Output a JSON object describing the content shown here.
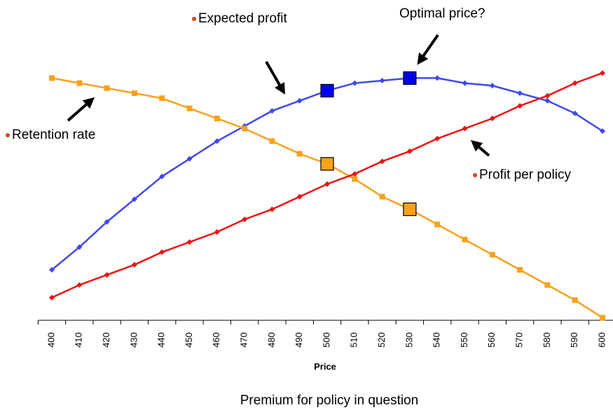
{
  "chart_data": {
    "type": "line",
    "annotations": [
      "Optimal price?"
    ],
    "x_label": "Price",
    "caption": "Premium for policy in question",
    "categories": [
      "400",
      "410",
      "420",
      "430",
      "440",
      "450",
      "460",
      "470",
      "480",
      "490",
      "500",
      "510",
      "520",
      "530",
      "540",
      "550",
      "560",
      "570",
      "580",
      "590",
      "600"
    ],
    "highlighted": [
      "500",
      "530"
    ],
    "ylim": [
      0,
      100
    ],
    "series": [
      {
        "name": "Expected profit",
        "color": "#4048f0",
        "marker": "diamond",
        "highlight_color": "#0000ee",
        "values": [
          20,
          29,
          39,
          48,
          57,
          64,
          71,
          77,
          83,
          87,
          91,
          94,
          95,
          96,
          96,
          94,
          93,
          90,
          87,
          82,
          75
        ]
      },
      {
        "name": "Retention rate",
        "color": "#f7a21b",
        "marker": "square",
        "highlight_color": "#f7a21b",
        "values": [
          96,
          94,
          92,
          90,
          88,
          84,
          80,
          76,
          71,
          66,
          62,
          56,
          49,
          44,
          38,
          32,
          26,
          20,
          14,
          8,
          1
        ]
      },
      {
        "name": "Profit per policy",
        "color": "#ee1111",
        "marker": "diamond",
        "values": [
          9,
          14,
          18,
          22,
          27,
          31,
          35,
          40,
          44,
          49,
          54,
          58,
          63,
          67,
          72,
          76,
          80,
          85,
          89,
          94,
          98
        ]
      }
    ]
  }
}
